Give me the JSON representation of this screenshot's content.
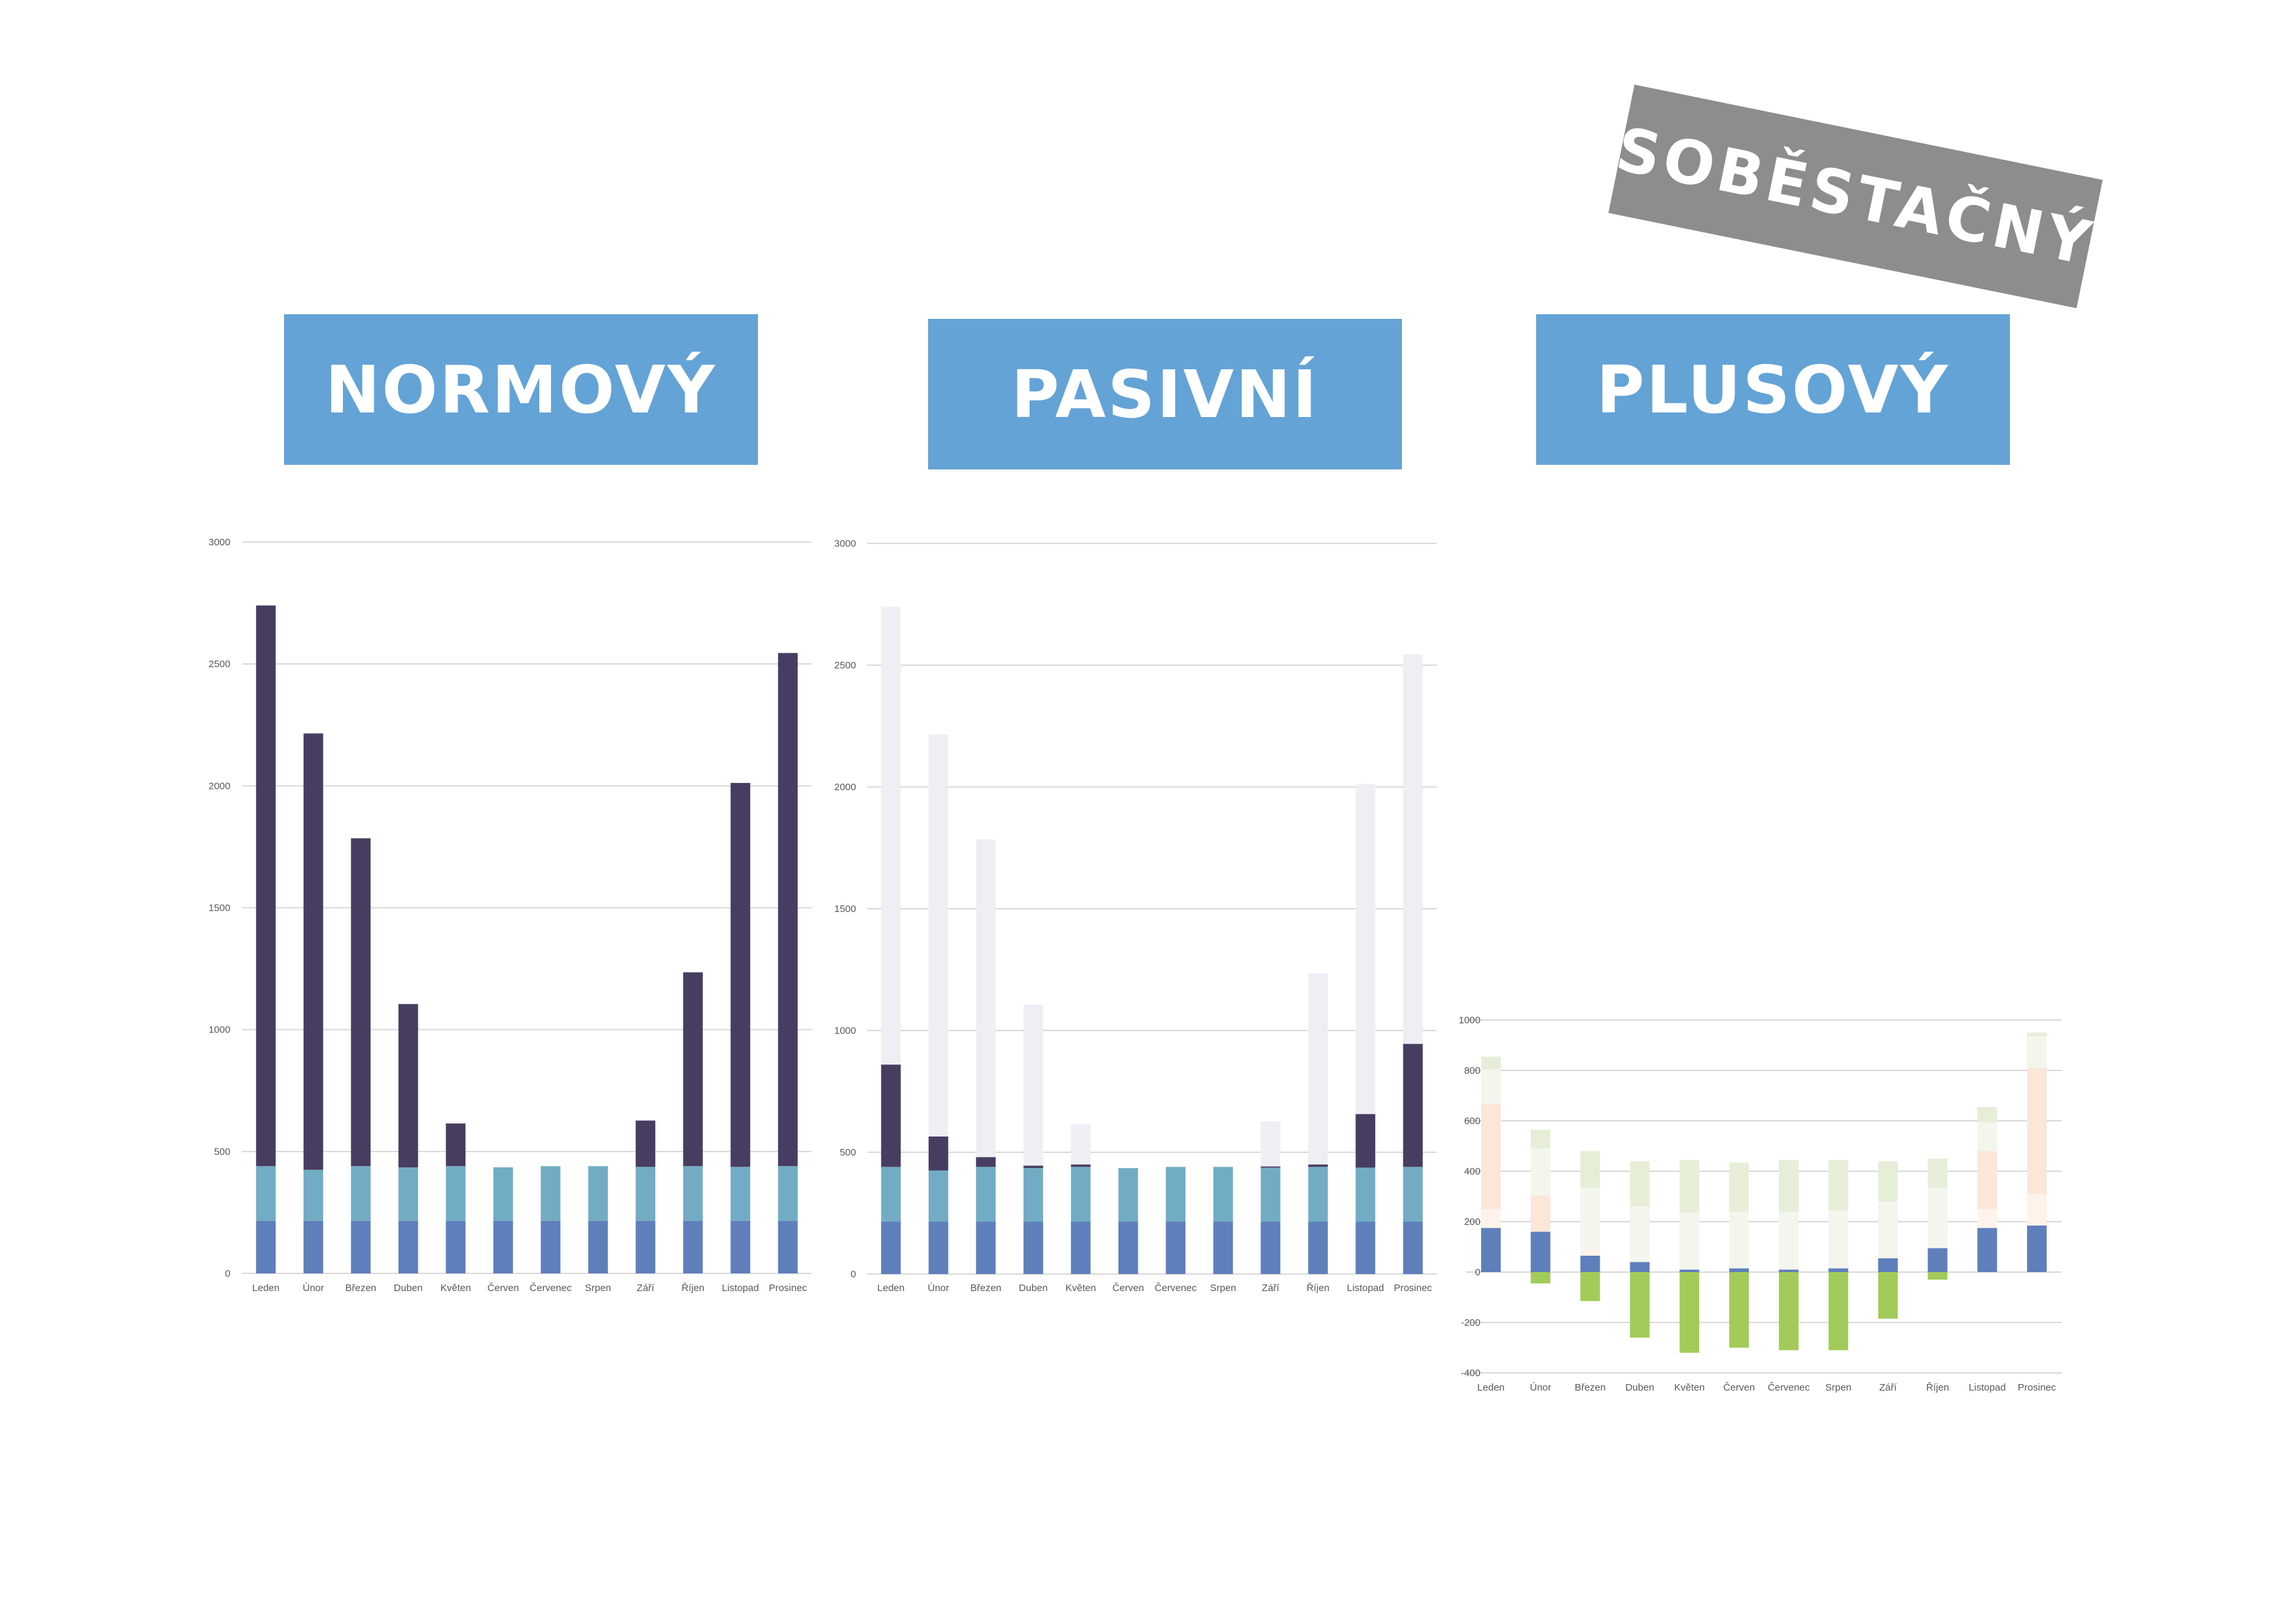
{
  "banners": {
    "normovy": "NORMOVÝ",
    "pasivni": "PASIVNÍ",
    "plusovy": "PLUSOVÝ",
    "sobestacny": "SOBĚSTAČNÝ"
  },
  "colors": {
    "base_blue": "#5f7fbc",
    "light_blue": "#72acc4",
    "dark_purple": "#473d61",
    "pale_lavender": "#efeef5",
    "green": "#a2cb59",
    "pale_green": "#e7eed8",
    "very_pale_green": "#f3f6ec",
    "pale_peach": "#fbe6d8",
    "very_pale_peach": "#fdf3ea",
    "grid": "#d9d9d9"
  },
  "chart_data": [
    {
      "type": "bar",
      "stacked": true,
      "title": "",
      "categories": [
        "Leden",
        "Únor",
        "Březen",
        "Duben",
        "Květen",
        "Červen",
        "Červenec",
        "Srpen",
        "Září",
        "Říjen",
        "Listopad",
        "Prosinec"
      ],
      "ylim": [
        0,
        3000
      ],
      "yticks": [
        0,
        500,
        1000,
        1500,
        2000,
        2500,
        3000
      ],
      "grid": true,
      "series": [
        {
          "color": "#5f7fbc",
          "values": [
            215,
            215,
            215,
            215,
            215,
            215,
            215,
            215,
            215,
            215,
            215,
            215
          ]
        },
        {
          "color": "#72acc4",
          "values": [
            225,
            210,
            225,
            220,
            225,
            220,
            225,
            225,
            222,
            225,
            222,
            225
          ]
        },
        {
          "color": "#473d61",
          "values": [
            2300,
            1790,
            1345,
            670,
            175,
            0,
            0,
            0,
            190,
            795,
            1575,
            2105
          ]
        }
      ]
    },
    {
      "type": "bar",
      "stacked": true,
      "title": "",
      "categories": [
        "Leden",
        "Únor",
        "Březen",
        "Duben",
        "Květen",
        "Červen",
        "Červenec",
        "Srpen",
        "Září",
        "Říjen",
        "Listopad",
        "Prosinec"
      ],
      "ylim": [
        0,
        3000
      ],
      "yticks": [
        0,
        500,
        1000,
        1500,
        2000,
        2500,
        3000
      ],
      "grid": true,
      "series": [
        {
          "color": "#5f7fbc",
          "values": [
            215,
            215,
            215,
            215,
            215,
            215,
            215,
            215,
            215,
            215,
            215,
            215
          ]
        },
        {
          "color": "#72acc4",
          "values": [
            225,
            210,
            225,
            220,
            225,
            220,
            225,
            225,
            222,
            225,
            222,
            225
          ]
        },
        {
          "color": "#473d61",
          "values": [
            420,
            140,
            40,
            10,
            10,
            0,
            0,
            0,
            5,
            10,
            220,
            505
          ]
        },
        {
          "color": "#efeef5",
          "values": [
            1880,
            1650,
            1305,
            660,
            165,
            0,
            0,
            0,
            185,
            785,
            1355,
            1600
          ]
        }
      ]
    },
    {
      "type": "bar",
      "stacked": true,
      "title": "",
      "categories": [
        "Leden",
        "Únor",
        "Březen",
        "Duben",
        "Květen",
        "Červen",
        "Červenec",
        "Srpen",
        "Září",
        "Říjen",
        "Listopad",
        "Prosinec"
      ],
      "ylim": [
        -400,
        1000
      ],
      "yticks": [
        -400,
        -200,
        0,
        200,
        400,
        600,
        800,
        1000
      ],
      "grid": true,
      "series": [
        {
          "color": "#5f7fbc",
          "values": [
            175,
            160,
            65,
            40,
            10,
            15,
            10,
            15,
            55,
            95,
            175,
            185
          ]
        },
        {
          "color": "#fdf3ea",
          "values": [
            75,
            0,
            25,
            0,
            0,
            0,
            0,
            0,
            0,
            0,
            75,
            125
          ]
        },
        {
          "color": "#fbe6d8",
          "values": [
            415,
            145,
            0,
            0,
            0,
            0,
            0,
            0,
            0,
            0,
            230,
            500
          ]
        },
        {
          "color": "#f3f6ec",
          "values": [
            140,
            185,
            245,
            220,
            225,
            225,
            230,
            230,
            225,
            240,
            115,
            125
          ]
        },
        {
          "color": "#e7eed8",
          "values": [
            50,
            75,
            145,
            180,
            210,
            195,
            205,
            200,
            160,
            115,
            60,
            15
          ]
        },
        {
          "color": "#a2cb59",
          "values": [
            0,
            -45,
            -115,
            -260,
            -320,
            -300,
            -310,
            -310,
            -185,
            -30,
            0,
            0
          ]
        }
      ]
    }
  ]
}
